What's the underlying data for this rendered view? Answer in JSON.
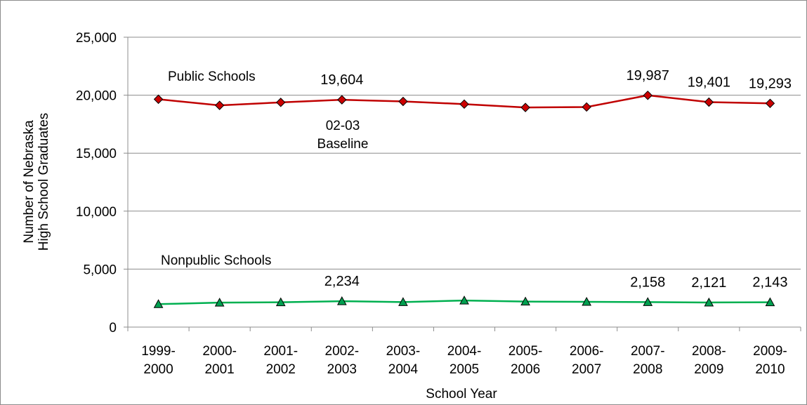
{
  "chart_data": {
    "type": "line",
    "xlabel": "School Year",
    "ylabel_lines": [
      "Number of Nebraska",
      "High School Graduates"
    ],
    "ylim": [
      0,
      25000
    ],
    "yticks": [
      "0",
      "5,000",
      "10,000",
      "15,000",
      "20,000",
      "25,000"
    ],
    "grid": true,
    "categories": [
      [
        "1999-",
        "2000"
      ],
      [
        "2000-",
        "2001"
      ],
      [
        "2001-",
        "2002"
      ],
      [
        "2002-",
        "2003"
      ],
      [
        "2003-",
        "2004"
      ],
      [
        "2004-",
        "2005"
      ],
      [
        "2005-",
        "2006"
      ],
      [
        "2006-",
        "2007"
      ],
      [
        "2007-",
        "2008"
      ],
      [
        "2008-",
        "2009"
      ],
      [
        "2009-",
        "2010"
      ]
    ],
    "series": [
      {
        "name": "Public Schools",
        "color": "#c00000",
        "marker": "diamond",
        "marker_fill": "#cc0000",
        "values": [
          19650,
          19120,
          19380,
          19604,
          19460,
          19230,
          18940,
          18980,
          19987,
          19401,
          19293
        ],
        "data_labels": {
          "3": "19,604",
          "8": "19,987",
          "9": "19,401",
          "10": "19,293"
        }
      },
      {
        "name": "Nonpublic Schools",
        "color": "#00b050",
        "marker": "triangle",
        "marker_fill": "#00a050",
        "values": [
          1980,
          2110,
          2140,
          2234,
          2160,
          2290,
          2200,
          2180,
          2158,
          2121,
          2143
        ],
        "data_labels": {
          "3": "2,234",
          "8": "2,158",
          "9": "2,121",
          "10": "2,143"
        }
      }
    ],
    "annotations": {
      "public_label": "Public Schools",
      "nonpublic_label": "Nonpublic Schools",
      "baseline_line1": "02-03",
      "baseline_line2": "Baseline"
    }
  }
}
